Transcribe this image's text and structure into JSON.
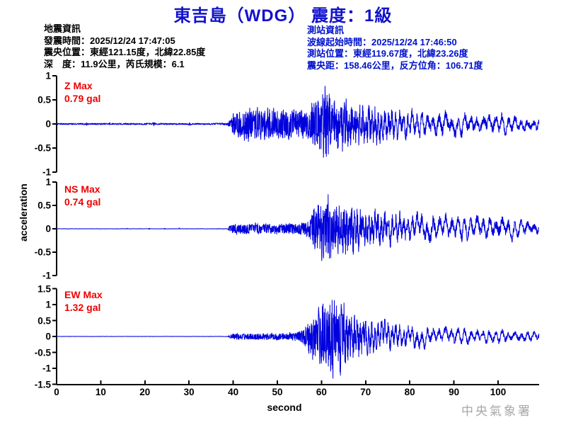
{
  "title": "東吉島（WDG） 震度：1級",
  "quake_info": {
    "heading": "地震資訊",
    "lines": [
      "發震時間：2025/12/24 17:47:05",
      "震央位置：東經121.15度，北緯22.85度",
      "深　度：11.9公里，芮氏規模：6.1"
    ]
  },
  "station_info": {
    "heading": "測站資訊",
    "lines": [
      "波線起始時間：2025/12/24 17:46:50",
      "測站位置：東經119.67度，北緯23.26度",
      "震央距：158.46公里，反方位角：106.71度"
    ]
  },
  "watermark": "中央氣象署",
  "colors": {
    "trace": "#0000dd",
    "title_blue": "#1212cc",
    "info_blue": "#0011cc",
    "label_red": "#ee0000",
    "axis_black": "#000000",
    "watermark_gray": "#a8a8a8"
  },
  "chart_data": {
    "type": "line",
    "xlabel": "second",
    "ylabel": "acceleration",
    "x_range": [
      0,
      109.3
    ],
    "x_ticks": [
      0,
      10,
      20,
      30,
      40,
      50,
      60,
      70,
      80,
      90,
      100
    ],
    "grid": false,
    "legend": false,
    "panels": [
      {
        "id": "Z",
        "label": "Z Max",
        "value_label": "0.79 gal",
        "max_gal": 0.79,
        "ylim": [
          -1,
          1
        ],
        "yticks": [
          1,
          0.5,
          0,
          -0.5,
          -1
        ],
        "p_onset_s": 39.3,
        "s_peak_s": 60.8,
        "peak_sign": 1,
        "seed": 7,
        "envelope": [
          [
            0,
            0.018
          ],
          [
            6.5,
            0.018
          ],
          [
            6.8,
            0.05
          ],
          [
            7.1,
            0.018
          ],
          [
            11.8,
            0.018
          ],
          [
            12.1,
            0.045
          ],
          [
            12.4,
            0.018
          ],
          [
            21.6,
            0.02
          ],
          [
            22,
            0.055
          ],
          [
            22.4,
            0.02
          ],
          [
            26,
            0.018
          ],
          [
            29.8,
            0.018
          ],
          [
            30.1,
            0.04
          ],
          [
            30.4,
            0.018
          ],
          [
            36,
            0.02
          ],
          [
            38.8,
            0.025
          ],
          [
            39.3,
            0.1
          ],
          [
            40.2,
            0.25
          ],
          [
            41.5,
            0.32
          ],
          [
            44,
            0.34
          ],
          [
            46,
            0.3
          ],
          [
            48,
            0.33
          ],
          [
            50,
            0.29
          ],
          [
            52,
            0.32
          ],
          [
            54,
            0.28
          ],
          [
            56,
            0.33
          ],
          [
            57.5,
            0.4
          ],
          [
            59,
            0.5
          ],
          [
            60.8,
            0.79
          ],
          [
            61.8,
            0.58
          ],
          [
            63,
            0.64
          ],
          [
            64.5,
            0.56
          ],
          [
            66,
            0.52
          ],
          [
            68,
            0.47
          ],
          [
            70,
            0.43
          ],
          [
            72.5,
            0.38
          ],
          [
            75,
            0.34
          ],
          [
            78,
            0.3
          ],
          [
            81,
            0.27
          ],
          [
            84,
            0.25
          ],
          [
            87,
            0.27
          ],
          [
            90,
            0.22
          ],
          [
            93,
            0.24
          ],
          [
            96,
            0.2
          ],
          [
            99,
            0.22
          ],
          [
            102,
            0.18
          ],
          [
            105,
            0.17
          ],
          [
            109.3,
            0.14
          ]
        ]
      },
      {
        "id": "NS",
        "label": "NS Max",
        "value_label": "0.74 gal",
        "max_gal": 0.74,
        "ylim": [
          -1,
          1
        ],
        "yticks": [
          1,
          0.5,
          0,
          -0.5,
          -1
        ],
        "p_onset_s": 39.3,
        "s_peak_s": 61.5,
        "peak_sign": 1,
        "seed": 99,
        "envelope": [
          [
            0,
            0.005
          ],
          [
            15.8,
            0.005
          ],
          [
            16,
            0.02
          ],
          [
            16.2,
            0.005
          ],
          [
            20.8,
            0.005
          ],
          [
            21,
            0.025
          ],
          [
            21.2,
            0.005
          ],
          [
            24.3,
            0.005
          ],
          [
            24.5,
            0.02
          ],
          [
            24.7,
            0.005
          ],
          [
            27.6,
            0.005
          ],
          [
            27.9,
            0.03
          ],
          [
            28.2,
            0.005
          ],
          [
            38.8,
            0.007
          ],
          [
            39.4,
            0.11
          ],
          [
            41,
            0.13
          ],
          [
            43,
            0.12
          ],
          [
            45,
            0.14
          ],
          [
            47,
            0.12
          ],
          [
            49,
            0.13
          ],
          [
            51,
            0.12
          ],
          [
            53,
            0.14
          ],
          [
            55,
            0.15
          ],
          [
            56.5,
            0.16
          ],
          [
            57.3,
            0.25
          ],
          [
            58,
            0.45
          ],
          [
            59,
            0.62
          ],
          [
            60.5,
            0.7
          ],
          [
            61.5,
            0.74
          ],
          [
            62.5,
            0.66
          ],
          [
            64,
            0.6
          ],
          [
            65.5,
            0.64
          ],
          [
            67,
            0.52
          ],
          [
            68.5,
            0.48
          ],
          [
            70,
            0.44
          ],
          [
            72,
            0.46
          ],
          [
            74,
            0.4
          ],
          [
            76,
            0.36
          ],
          [
            78,
            0.38
          ],
          [
            80,
            0.33
          ],
          [
            82,
            0.3
          ],
          [
            85,
            0.33
          ],
          [
            88,
            0.28
          ],
          [
            91,
            0.3
          ],
          [
            94,
            0.25
          ],
          [
            97,
            0.27
          ],
          [
            100,
            0.3
          ],
          [
            103,
            0.24
          ],
          [
            106,
            0.2
          ],
          [
            109.3,
            0.16
          ]
        ]
      },
      {
        "id": "EW",
        "label": "EW Max",
        "value_label": "1.32 gal",
        "max_gal": 1.32,
        "ylim": [
          -1.5,
          1.5
        ],
        "yticks": [
          1.5,
          1,
          0.5,
          0,
          -0.5,
          -1,
          -1.5
        ],
        "p_onset_s": 39.3,
        "s_peak_s": 62.6,
        "peak_sign": -1,
        "seed": 12345,
        "envelope": [
          [
            0,
            0.005
          ],
          [
            30,
            0.005
          ],
          [
            38.8,
            0.007
          ],
          [
            39.5,
            0.09
          ],
          [
            41,
            0.11
          ],
          [
            43,
            0.1
          ],
          [
            45,
            0.12
          ],
          [
            47,
            0.1
          ],
          [
            49,
            0.12
          ],
          [
            51,
            0.11
          ],
          [
            53,
            0.13
          ],
          [
            55,
            0.16
          ],
          [
            56,
            0.28
          ],
          [
            57,
            0.5
          ],
          [
            58,
            0.75
          ],
          [
            59.5,
            0.98
          ],
          [
            61,
            1.15
          ],
          [
            62.6,
            1.32
          ],
          [
            63.6,
            1.05
          ],
          [
            64.6,
            1.2
          ],
          [
            65.6,
            0.85
          ],
          [
            67,
            0.7
          ],
          [
            69,
            0.62
          ],
          [
            71,
            0.52
          ],
          [
            73,
            0.47
          ],
          [
            75,
            0.43
          ],
          [
            77,
            0.4
          ],
          [
            79,
            0.36
          ],
          [
            81,
            0.33
          ],
          [
            84,
            0.3
          ],
          [
            87,
            0.27
          ],
          [
            90,
            0.25
          ],
          [
            93,
            0.23
          ],
          [
            96,
            0.21
          ],
          [
            99,
            0.22
          ],
          [
            102,
            0.19
          ],
          [
            105,
            0.18
          ],
          [
            109.3,
            0.16
          ]
        ]
      }
    ]
  }
}
